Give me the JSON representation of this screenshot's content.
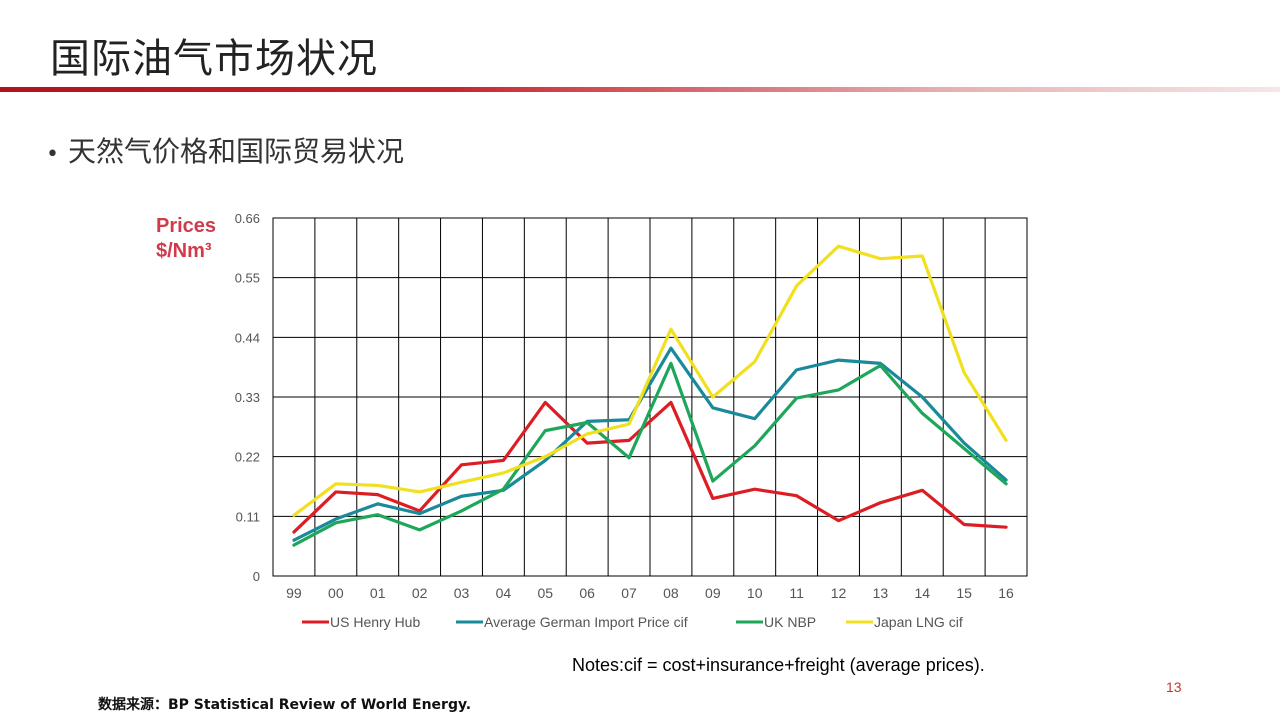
{
  "slide": {
    "title": "国际油气市场状况",
    "bullet": "天然气价格和国际贸易状况",
    "notes": "Notes:cif = cost+insurance+freight (average prices).",
    "source": "数据来源：BP Statistical Review of World Energy.",
    "page_number": "13",
    "accent_color": "#c8242d"
  },
  "chart_data": {
    "type": "line",
    "ylabel_line1": "Prices",
    "ylabel_line2": "$/Nm³",
    "x": [
      "99",
      "00",
      "01",
      "02",
      "03",
      "04",
      "05",
      "06",
      "07",
      "08",
      "09",
      "10",
      "11",
      "12",
      "13",
      "14",
      "15",
      "16"
    ],
    "ylim": [
      0,
      0.66
    ],
    "yticks": [
      "0",
      "0.11",
      "0.22",
      "0.33",
      "0.44",
      "0.55",
      "0.66"
    ],
    "grid": true,
    "legend_position": "bottom",
    "series": [
      {
        "name": "US Henry Hub",
        "color": "#dc1e24",
        "values": [
          0.081,
          0.155,
          0.15,
          0.12,
          0.205,
          0.213,
          0.32,
          0.245,
          0.25,
          0.32,
          0.143,
          0.16,
          0.148,
          0.102,
          0.135,
          0.158,
          0.095,
          0.09
        ]
      },
      {
        "name": "Average German Import Price cif",
        "color": "#1a8a9a",
        "values": [
          0.066,
          0.105,
          0.133,
          0.115,
          0.147,
          0.158,
          0.213,
          0.285,
          0.288,
          0.42,
          0.31,
          0.29,
          0.38,
          0.398,
          0.392,
          0.33,
          0.245,
          0.177
        ]
      },
      {
        "name": "UK NBP",
        "color": "#1ea65a",
        "values": [
          0.057,
          0.098,
          0.113,
          0.085,
          0.12,
          0.16,
          0.268,
          0.283,
          0.218,
          0.392,
          0.175,
          0.24,
          0.328,
          0.343,
          0.388,
          0.3,
          0.235,
          0.17
        ]
      },
      {
        "name": "Japan LNG cif",
        "color": "#f0e020",
        "values": [
          0.112,
          0.17,
          0.167,
          0.155,
          0.173,
          0.19,
          0.22,
          0.262,
          0.28,
          0.455,
          0.33,
          0.395,
          0.535,
          0.608,
          0.585,
          0.59,
          0.375,
          0.25
        ]
      }
    ]
  }
}
